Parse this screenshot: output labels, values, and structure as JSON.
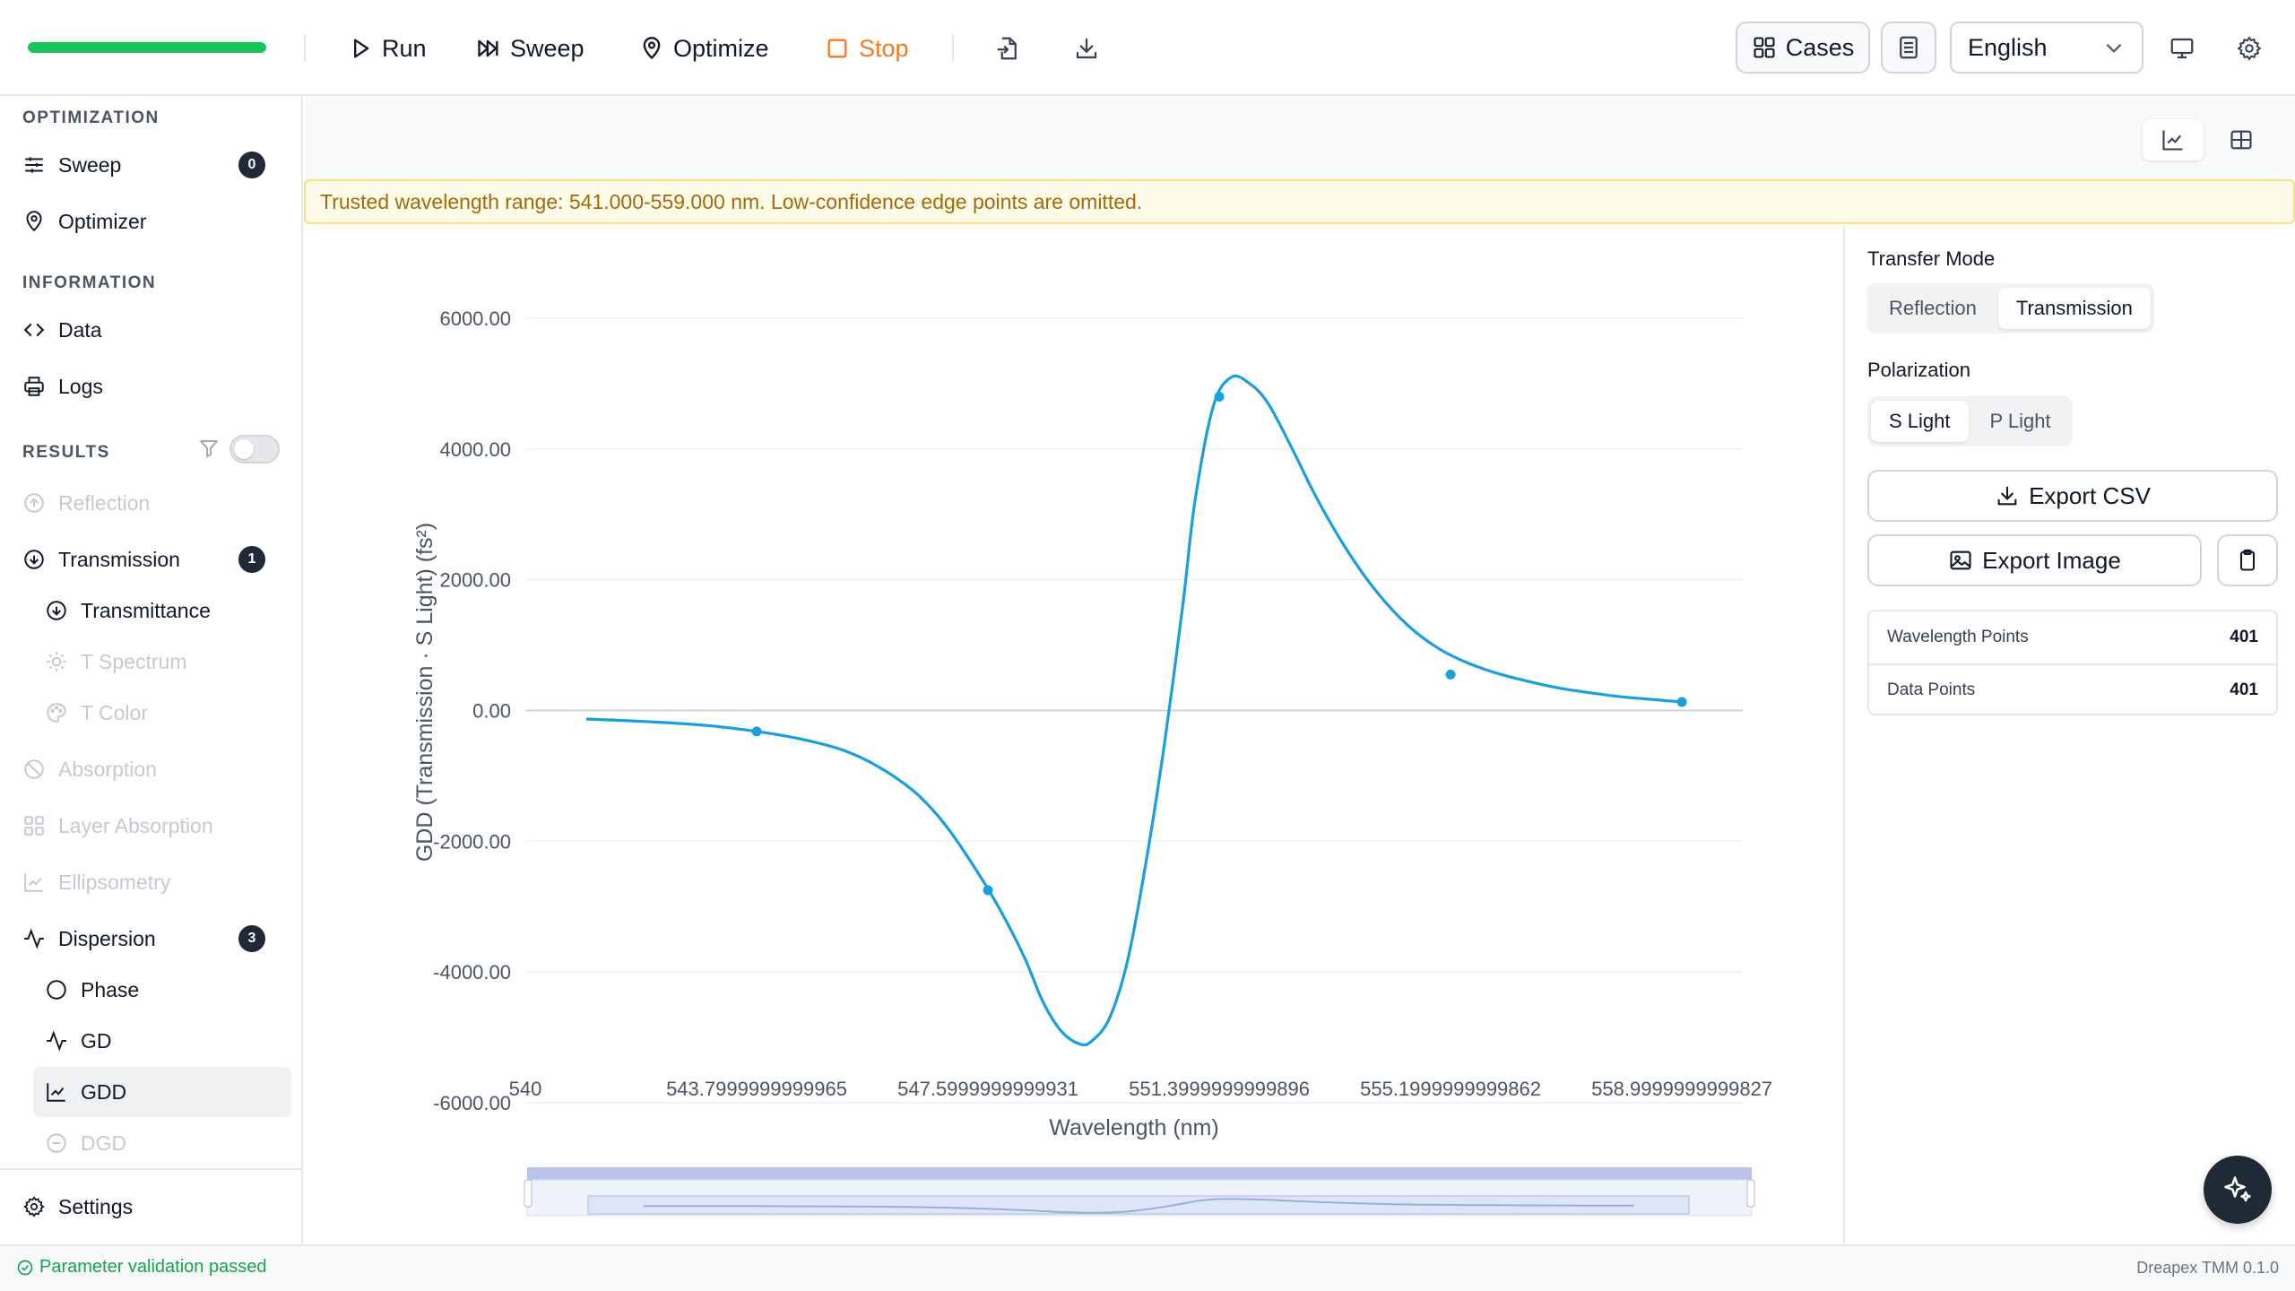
{
  "toolbar": {
    "progress": 1.0,
    "run_label": "Run",
    "sweep_label": "Sweep",
    "optimize_label": "Optimize",
    "stop_label": "Stop",
    "cases_label": "Cases",
    "language": "English"
  },
  "sidebar": {
    "optimization_title": "OPTIMIZATION",
    "sweep_label": "Sweep",
    "sweep_badge": "0",
    "optimizer_label": "Optimizer",
    "information_title": "INFORMATION",
    "data_label": "Data",
    "logs_label": "Logs",
    "results_title": "RESULTS",
    "reflection_label": "Reflection",
    "transmission_label": "Transmission",
    "transmission_badge": "1",
    "transmittance_label": "Transmittance",
    "t_spectrum_label": "T Spectrum",
    "t_color_label": "T Color",
    "absorption_label": "Absorption",
    "layer_absorption_label": "Layer Absorption",
    "ellipsometry_label": "Ellipsometry",
    "dispersion_label": "Dispersion",
    "dispersion_badge": "3",
    "phase_label": "Phase",
    "gd_label": "GD",
    "gdd_label": "GDD",
    "dgd_label": "DGD",
    "settings_label": "Settings"
  },
  "banner": {
    "text": "Trusted wavelength range: 541.000-559.000 nm. Low-confidence edge points are omitted."
  },
  "right_panel": {
    "transfer_mode_label": "Transfer Mode",
    "reflection_label": "Reflection",
    "transmission_label": "Transmission",
    "polarization_label": "Polarization",
    "s_light_label": "S Light",
    "p_light_label": "P Light",
    "export_csv_label": "Export CSV",
    "export_image_label": "Export Image",
    "wavelength_points_label": "Wavelength Points",
    "wavelength_points_value": "401",
    "data_points_label": "Data Points",
    "data_points_value": "401"
  },
  "status": {
    "validation": "Parameter validation passed",
    "version": "Dreapex TMM 0.1.0"
  },
  "colors": {
    "accent_line": "#1a9fdc",
    "progress": "#16c45a",
    "stop": "#f27a1f",
    "banner_text": "#a26a0a"
  },
  "chart_data": {
    "type": "line",
    "xlabel": "Wavelength (nm)",
    "ylabel": "GDD (Transmission · S Light) (fs²)",
    "xlim": [
      540,
      559.9999
    ],
    "ylim": [
      -6000,
      6000
    ],
    "x_tick_labels": [
      "540",
      "543.7999999999965",
      "547.5999999999931",
      "551.3999999999896",
      "555.1999999999862",
      "558.9999999999827"
    ],
    "x_tick_values": [
      540,
      543.8,
      547.6,
      551.4,
      555.2,
      559.0
    ],
    "y_tick_labels": [
      "6000.00",
      "4000.00",
      "2000.00",
      "0.00",
      "-2000.00",
      "-4000.00",
      "-6000.00"
    ],
    "y_tick_values": [
      6000,
      4000,
      2000,
      0,
      -2000,
      -4000,
      -6000
    ],
    "grid": true,
    "series": [
      {
        "x": [
          541.0,
          542.0,
          543.0,
          543.8,
          544.5,
          545.2,
          545.8,
          546.4,
          546.9,
          547.4,
          547.8,
          548.2,
          548.5,
          548.8,
          549.1,
          549.3,
          549.6,
          549.9,
          550.2,
          550.5,
          550.8,
          551.0,
          551.3,
          551.6,
          551.9,
          552.2,
          552.6,
          553.0,
          553.5,
          554.0,
          554.5,
          555.0,
          555.5,
          556.0,
          556.5,
          557.0,
          557.5,
          558.0,
          558.5,
          559.0
        ],
        "y": [
          -130,
          -170,
          -230,
          -320,
          -430,
          -600,
          -860,
          -1250,
          -1750,
          -2430,
          -3050,
          -3780,
          -4450,
          -4900,
          -5100,
          -5060,
          -4700,
          -3800,
          -2300,
          -500,
          1600,
          3200,
          4650,
          5100,
          5000,
          4700,
          4000,
          3250,
          2450,
          1800,
          1300,
          950,
          720,
          560,
          440,
          340,
          270,
          210,
          170,
          130
        ]
      }
    ],
    "markers": [
      {
        "x": 543.8,
        "y": -320
      },
      {
        "x": 547.6,
        "y": -2750
      },
      {
        "x": 551.4,
        "y": 4800
      },
      {
        "x": 555.2,
        "y": 550
      },
      {
        "x": 559.0,
        "y": 130
      }
    ]
  }
}
